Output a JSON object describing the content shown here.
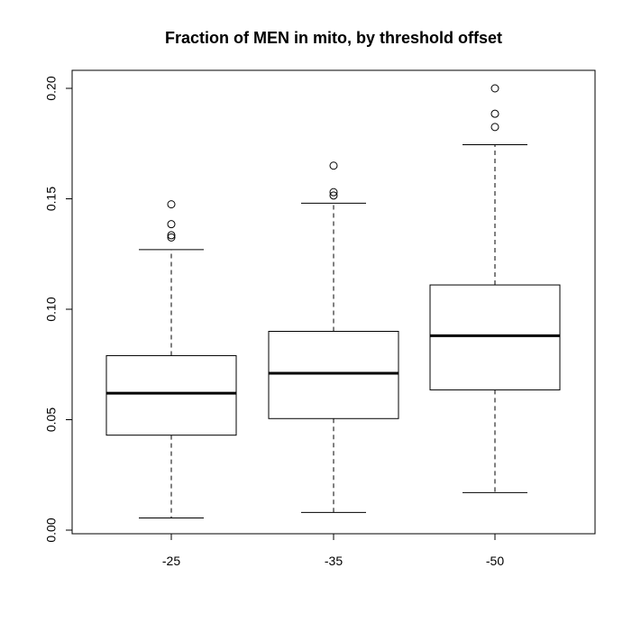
{
  "chart_data": {
    "type": "boxplot",
    "title": "Fraction of MEN in mito, by threshold offset",
    "xlabel": "",
    "ylabel": "",
    "ylim": [
      0.0,
      0.2
    ],
    "y_ticks": [
      {
        "value": 0.0,
        "label": "0.00"
      },
      {
        "value": 0.05,
        "label": "0.05"
      },
      {
        "value": 0.1,
        "label": "0.10"
      },
      {
        "value": 0.15,
        "label": "0.15"
      },
      {
        "value": 0.2,
        "label": "0.20"
      }
    ],
    "categories": [
      "-25",
      "-35",
      "-50"
    ],
    "boxes": [
      {
        "category": "-25",
        "whisker_low": 0.0055,
        "q1": 0.043,
        "median": 0.062,
        "q3": 0.079,
        "whisker_high": 0.127,
        "outliers": [
          0.1475,
          0.1385,
          0.1335,
          0.1325
        ]
      },
      {
        "category": "-35",
        "whisker_low": 0.008,
        "q1": 0.0505,
        "median": 0.071,
        "q3": 0.09,
        "whisker_high": 0.148,
        "outliers": [
          0.165,
          0.153,
          0.1515
        ]
      },
      {
        "category": "-50",
        "whisker_low": 0.017,
        "q1": 0.0635,
        "median": 0.088,
        "q3": 0.111,
        "whisker_high": 0.1745,
        "outliers": [
          0.2,
          0.1885,
          0.1825
        ]
      }
    ],
    "grid": false,
    "legend": "none"
  }
}
